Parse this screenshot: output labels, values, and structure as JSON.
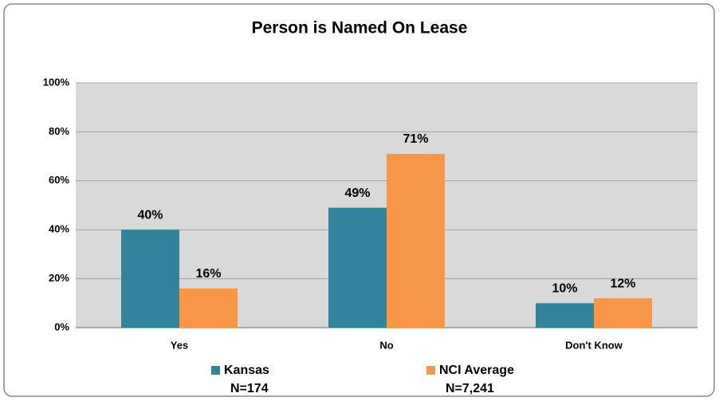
{
  "chart_data": {
    "type": "bar",
    "title": "Person is Named On Lease",
    "categories": [
      "Yes",
      "No",
      "Don't Know"
    ],
    "series": [
      {
        "name": "Kansas",
        "sample_size": "N=174",
        "color": "#31849b",
        "values": [
          40,
          49,
          10
        ],
        "value_labels": [
          "40%",
          "49%",
          "10%"
        ]
      },
      {
        "name": "NCI Average",
        "sample_size": "N=7,241",
        "color": "#f79646",
        "values": [
          16,
          71,
          12
        ],
        "value_labels": [
          "16%",
          "71%",
          "12%"
        ]
      }
    ],
    "ylim": [
      0,
      100
    ],
    "yticks": [
      {
        "value": 0,
        "label": "0%"
      },
      {
        "value": 20,
        "label": "20%"
      },
      {
        "value": 40,
        "label": "40%"
      },
      {
        "value": 60,
        "label": "60%"
      },
      {
        "value": 80,
        "label": "80%"
      },
      {
        "value": 100,
        "label": "100%"
      }
    ],
    "grid": true,
    "legend": "bottom"
  }
}
